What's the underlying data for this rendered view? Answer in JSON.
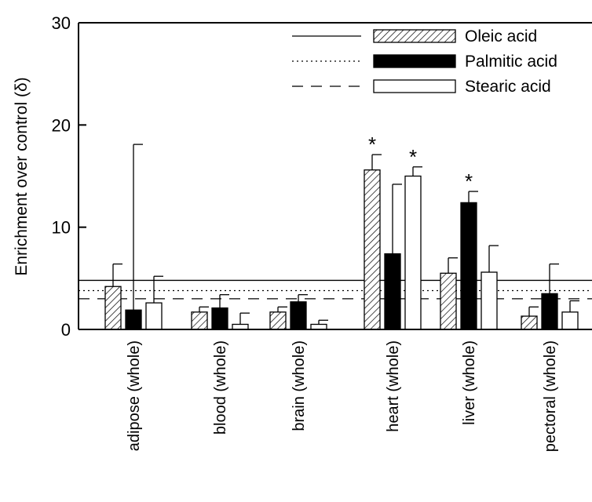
{
  "chart_data": {
    "type": "bar",
    "ylabel": "Enrichment over control (δ)",
    "ylim": [
      0,
      30
    ],
    "yticks": [
      "0",
      "10",
      "20",
      "30"
    ],
    "categories": [
      "adipose (whole)",
      "blood (whole)",
      "brain (whole)",
      "heart (whole)",
      "liver (whole)",
      "pectoral (whole)"
    ],
    "series": [
      {
        "name": "Oleic acid",
        "pattern": "hatched",
        "line_style": "solid",
        "reference_line": 4.8,
        "values": [
          4.2,
          1.7,
          1.7,
          15.6,
          5.5,
          1.3
        ],
        "errors": [
          2.2,
          0.5,
          0.5,
          1.5,
          1.5,
          0.9
        ],
        "significant": [
          false,
          false,
          false,
          true,
          false,
          false
        ]
      },
      {
        "name": "Palmitic acid",
        "pattern": "solid-black",
        "line_style": "dotted",
        "reference_line": 3.8,
        "values": [
          1.9,
          2.1,
          2.7,
          7.4,
          12.4,
          3.5
        ],
        "errors": [
          16.2,
          1.3,
          0.7,
          6.8,
          1.1,
          2.9
        ],
        "significant": [
          false,
          false,
          false,
          false,
          true,
          false
        ]
      },
      {
        "name": "Stearic acid",
        "pattern": "white",
        "line_style": "dashed",
        "reference_line": 3.0,
        "values": [
          2.6,
          0.5,
          0.5,
          15.0,
          5.6,
          1.7
        ],
        "errors": [
          2.6,
          1.1,
          0.4,
          0.9,
          2.6,
          1.1
        ],
        "significant": [
          false,
          false,
          false,
          true,
          false,
          false
        ]
      }
    ],
    "significance_marker": "*",
    "legend_position": "top-right",
    "grid": false
  }
}
